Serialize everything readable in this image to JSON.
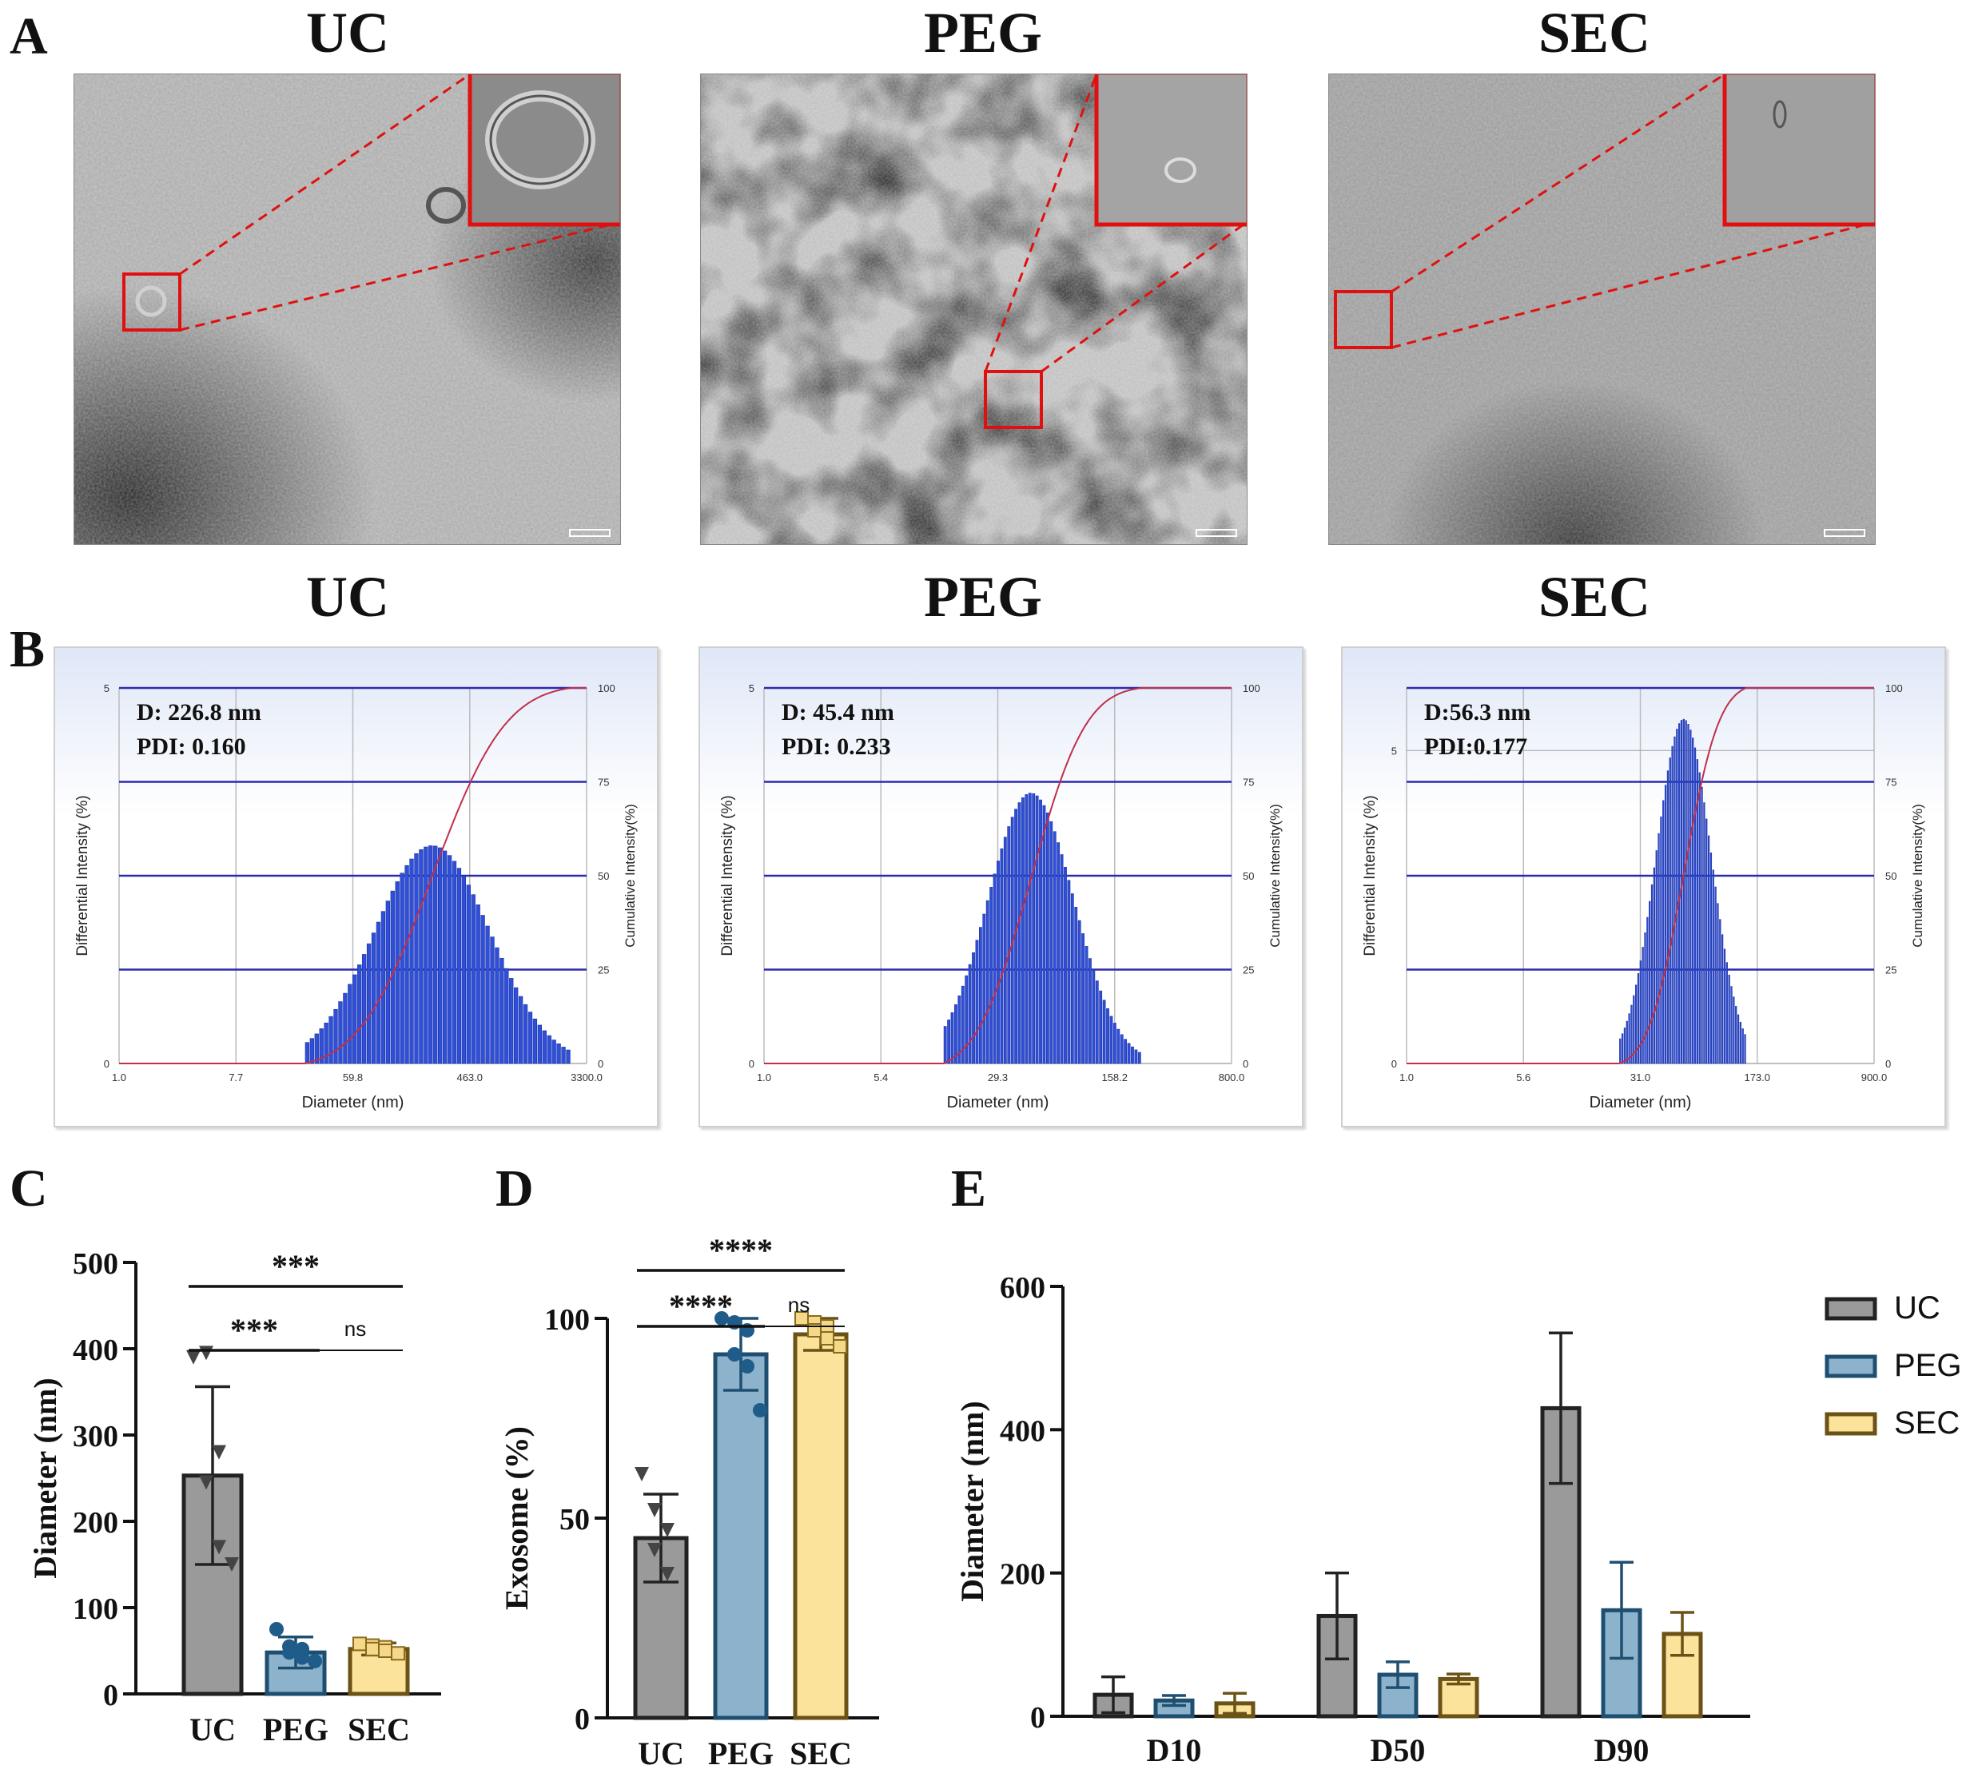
{
  "panels": {
    "A": "A",
    "B": "B",
    "C": "C",
    "D": "D",
    "E": "E"
  },
  "tem": {
    "titles": [
      "UC",
      "PEG",
      "SEC"
    ]
  },
  "dls_titles": [
    "UC",
    "PEG",
    "SEC"
  ],
  "chart_data": [
    {
      "panel": "B-UC",
      "type": "bar",
      "title": "UC",
      "annotation": [
        "D: 226.8 nm",
        "PDI: 0.160"
      ],
      "xlabel": "Diameter (nm)",
      "ylabel": "Differential Intensity (%)",
      "y2label": "Cumulative Intensity(%)",
      "x_ticks": [
        "1.0",
        "7.7",
        "59.8",
        "463.0",
        "3300.0"
      ],
      "y_ticks": [
        "0",
        "5"
      ],
      "y2_ticks": [
        "0",
        "25",
        "50",
        "75",
        "100"
      ],
      "ylim": [
        0,
        5
      ],
      "y2lim": [
        0,
        100
      ],
      "peak_diameter_nm": 226.8,
      "peak_height": 2.9,
      "distribution_range_nm": [
        25,
        2500
      ],
      "log_scale_x": true
    },
    {
      "panel": "B-PEG",
      "type": "bar",
      "title": "PEG",
      "annotation": [
        "D: 45.4 nm",
        "PDI: 0.233"
      ],
      "xlabel": "Diameter (nm)",
      "ylabel": "Differential Intensity (%)",
      "y2label": "Cumulative Intensity(%)",
      "x_ticks": [
        "1.0",
        "5.4",
        "29.3",
        "158.2",
        "800.0"
      ],
      "y_ticks": [
        "0",
        "5"
      ],
      "y2_ticks": [
        "0",
        "25",
        "50",
        "75",
        "100"
      ],
      "ylim": [
        0,
        5
      ],
      "y2lim": [
        0,
        100
      ],
      "peak_diameter_nm": 45.4,
      "peak_height": 3.6,
      "distribution_range_nm": [
        13,
        220
      ],
      "log_scale_x": true
    },
    {
      "panel": "B-SEC",
      "type": "bar",
      "title": "SEC",
      "annotation": [
        "D:56.3 nm",
        "PDI:0.177"
      ],
      "xlabel": "Diameter (nm)",
      "ylabel": "Differential Intensity (%)",
      "y2label": "Cumulative Intensity(%)",
      "x_ticks": [
        "1.0",
        "5.6",
        "31.0",
        "173.0",
        "900.0"
      ],
      "y_ticks": [
        "0",
        "5"
      ],
      "y2_ticks": [
        "0",
        "25",
        "50",
        "75",
        "100"
      ],
      "ylim": [
        0,
        6
      ],
      "y2lim": [
        0,
        100
      ],
      "peak_diameter_nm": 56.3,
      "peak_height": 5.5,
      "distribution_range_nm": [
        22,
        140
      ],
      "log_scale_x": true
    },
    {
      "panel": "C",
      "type": "bar",
      "categories": [
        "UC",
        "PEG",
        "SEC"
      ],
      "values": [
        253,
        48,
        52
      ],
      "errors": [
        103,
        18,
        7
      ],
      "colors": [
        "#9a9a9a",
        "#8cb2cc",
        "#fbe39b"
      ],
      "edge_colors": [
        "#222222",
        "#1f4f70",
        "#6b5216"
      ],
      "points": [
        [
          390,
          395,
          280,
          245,
          170,
          150
        ],
        [
          75,
          55,
          52,
          48,
          42,
          38
        ],
        [
          58,
          56,
          54,
          52,
          50,
          47
        ]
      ],
      "point_markers": [
        "triangle-down",
        "circle",
        "square"
      ],
      "ylabel": "Diameter (nm)",
      "ylim": [
        0,
        500
      ],
      "y_ticks": [
        "0",
        "100",
        "200",
        "300",
        "400",
        "500"
      ],
      "significance": [
        {
          "from": "UC",
          "to": "SEC",
          "label": "***"
        },
        {
          "from": "UC",
          "to": "PEG",
          "label": "***"
        },
        {
          "from": "PEG",
          "to": "SEC",
          "label": "ns"
        }
      ]
    },
    {
      "panel": "D",
      "type": "bar",
      "categories": [
        "UC",
        "PEG",
        "SEC"
      ],
      "values": [
        45,
        91,
        96
      ],
      "errors": [
        11,
        9,
        4
      ],
      "colors": [
        "#9a9a9a",
        "#8cb2cc",
        "#fbe39b"
      ],
      "edge_colors": [
        "#222222",
        "#1f4f70",
        "#6b5216"
      ],
      "points": [
        [
          61,
          52,
          47,
          42,
          36
        ],
        [
          100,
          99,
          97,
          91,
          88,
          77
        ],
        [
          100,
          99,
          98,
          97,
          95,
          93
        ]
      ],
      "point_markers": [
        "triangle-down",
        "circle",
        "square"
      ],
      "ylabel": "Exosome (%)",
      "ylim": [
        0,
        100
      ],
      "y_ticks": [
        "0",
        "50",
        "100"
      ],
      "significance": [
        {
          "from": "UC",
          "to": "SEC",
          "label": "****"
        },
        {
          "from": "UC",
          "to": "PEG",
          "label": "****"
        },
        {
          "from": "PEG",
          "to": "SEC",
          "label": "ns"
        }
      ]
    },
    {
      "panel": "E",
      "type": "bar",
      "categories": [
        "D10",
        "D50",
        "D90"
      ],
      "series": [
        {
          "name": "UC",
          "values": [
            30,
            140,
            430
          ],
          "errors": [
            25,
            60,
            105
          ]
        },
        {
          "name": "PEG",
          "values": [
            22,
            58,
            148
          ],
          "errors": [
            7,
            18,
            67
          ]
        },
        {
          "name": "SEC",
          "values": [
            18,
            52,
            115
          ],
          "errors": [
            14,
            7,
            30
          ]
        }
      ],
      "colors": [
        "#9a9a9a",
        "#8cb2cc",
        "#fbe39b"
      ],
      "edge_colors": [
        "#222222",
        "#1f4f70",
        "#6b5216"
      ],
      "ylabel": "Diameter (nm)",
      "ylim": [
        0,
        600
      ],
      "y_ticks": [
        "0",
        "200",
        "400",
        "600"
      ],
      "legend": "right"
    }
  ]
}
